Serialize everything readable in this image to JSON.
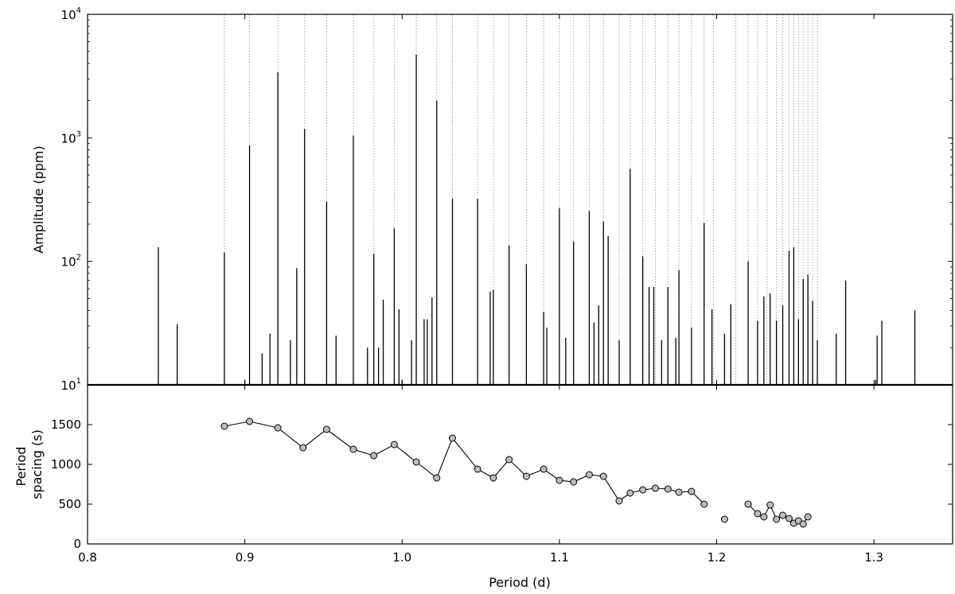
{
  "chart_data": [
    {
      "type": "bar",
      "subtype": "stem",
      "ylabel": "Amplitude (ppm)",
      "xlim": [
        0.8,
        1.35
      ],
      "ylim": [
        10,
        10000
      ],
      "yscale": "log",
      "y_ticks": [
        {
          "base": "10",
          "exp": "1"
        },
        {
          "base": "10",
          "exp": "2"
        },
        {
          "base": "10",
          "exp": "3"
        },
        {
          "base": "10",
          "exp": "4"
        }
      ],
      "grid": false,
      "mode_periods": [
        0.887,
        0.903,
        0.921,
        0.938,
        0.952,
        0.969,
        0.982,
        0.995,
        1.009,
        1.022,
        1.032,
        1.048,
        1.058,
        1.068,
        1.079,
        1.09,
        1.1,
        1.109,
        1.119,
        1.128,
        1.138,
        1.145,
        1.153,
        1.161,
        1.169,
        1.176,
        1.184,
        1.192,
        1.198,
        1.212,
        1.22,
        1.226,
        1.232,
        1.238,
        1.242,
        1.246,
        1.249,
        1.252,
        1.255,
        1.258,
        1.261,
        1.264
      ],
      "stems": [
        {
          "x": 0.845,
          "y": 130
        },
        {
          "x": 0.857,
          "y": 31
        },
        {
          "x": 0.887,
          "y": 118
        },
        {
          "x": 0.9,
          "y": 11
        },
        {
          "x": 0.903,
          "y": 870
        },
        {
          "x": 0.911,
          "y": 18
        },
        {
          "x": 0.916,
          "y": 26
        },
        {
          "x": 0.921,
          "y": 3400
        },
        {
          "x": 0.929,
          "y": 23
        },
        {
          "x": 0.933,
          "y": 88
        },
        {
          "x": 0.938,
          "y": 1180
        },
        {
          "x": 0.952,
          "y": 305
        },
        {
          "x": 0.958,
          "y": 25
        },
        {
          "x": 0.969,
          "y": 1040
        },
        {
          "x": 0.978,
          "y": 20
        },
        {
          "x": 0.982,
          "y": 115
        },
        {
          "x": 0.985,
          "y": 20
        },
        {
          "x": 0.988,
          "y": 49
        },
        {
          "x": 0.995,
          "y": 185
        },
        {
          "x": 0.998,
          "y": 41
        },
        {
          "x": 1.0,
          "y": 11
        },
        {
          "x": 1.006,
          "y": 23
        },
        {
          "x": 1.009,
          "y": 4700
        },
        {
          "x": 1.014,
          "y": 34
        },
        {
          "x": 1.016,
          "y": 34
        },
        {
          "x": 1.019,
          "y": 51
        },
        {
          "x": 1.022,
          "y": 2000
        },
        {
          "x": 1.032,
          "y": 320
        },
        {
          "x": 1.048,
          "y": 320
        },
        {
          "x": 1.056,
          "y": 57
        },
        {
          "x": 1.058,
          "y": 59
        },
        {
          "x": 1.068,
          "y": 135
        },
        {
          "x": 1.079,
          "y": 95
        },
        {
          "x": 1.09,
          "y": 39
        },
        {
          "x": 1.092,
          "y": 29
        },
        {
          "x": 1.1,
          "y": 270
        },
        {
          "x": 1.104,
          "y": 24
        },
        {
          "x": 1.109,
          "y": 145
        },
        {
          "x": 1.119,
          "y": 255
        },
        {
          "x": 1.122,
          "y": 32
        },
        {
          "x": 1.125,
          "y": 44
        },
        {
          "x": 1.128,
          "y": 210
        },
        {
          "x": 1.131,
          "y": 160
        },
        {
          "x": 1.138,
          "y": 23
        },
        {
          "x": 1.145,
          "y": 560
        },
        {
          "x": 1.153,
          "y": 110
        },
        {
          "x": 1.157,
          "y": 62
        },
        {
          "x": 1.16,
          "y": 62
        },
        {
          "x": 1.165,
          "y": 23
        },
        {
          "x": 1.169,
          "y": 62
        },
        {
          "x": 1.174,
          "y": 24
        },
        {
          "x": 1.176,
          "y": 85
        },
        {
          "x": 1.184,
          "y": 29
        },
        {
          "x": 1.192,
          "y": 205
        },
        {
          "x": 1.197,
          "y": 41
        },
        {
          "x": 1.205,
          "y": 26
        },
        {
          "x": 1.209,
          "y": 45
        },
        {
          "x": 1.22,
          "y": 100
        },
        {
          "x": 1.226,
          "y": 33
        },
        {
          "x": 1.23,
          "y": 52
        },
        {
          "x": 1.234,
          "y": 55
        },
        {
          "x": 1.238,
          "y": 33
        },
        {
          "x": 1.242,
          "y": 44
        },
        {
          "x": 1.246,
          "y": 122
        },
        {
          "x": 1.249,
          "y": 130
        },
        {
          "x": 1.252,
          "y": 34
        },
        {
          "x": 1.255,
          "y": 72
        },
        {
          "x": 1.258,
          "y": 78
        },
        {
          "x": 1.261,
          "y": 48
        },
        {
          "x": 1.264,
          "y": 23
        },
        {
          "x": 1.276,
          "y": 26
        },
        {
          "x": 1.282,
          "y": 70
        },
        {
          "x": 1.301,
          "y": 11
        },
        {
          "x": 1.302,
          "y": 25
        },
        {
          "x": 1.305,
          "y": 33
        },
        {
          "x": 1.326,
          "y": 40
        }
      ]
    },
    {
      "type": "line",
      "subtype": "line-with-markers",
      "xlabel": "Period (d)",
      "ylabel": "Period spacing (s)",
      "ylabel_lines": [
        "Period",
        "spacing (s)"
      ],
      "xlim": [
        0.8,
        1.35
      ],
      "ylim": [
        0,
        2000
      ],
      "x_ticks": [
        "0.8",
        "0.9",
        "1.0",
        "1.1",
        "1.2",
        "1.3"
      ],
      "y_ticks": [
        "0",
        "500",
        "1000",
        "1500"
      ],
      "grid": false,
      "series": [
        {
          "points": [
            [
              0.887,
              1480
            ],
            [
              0.903,
              1540
            ],
            [
              0.921,
              1460
            ],
            [
              0.937,
              1210
            ],
            [
              0.952,
              1440
            ],
            [
              0.969,
              1190
            ],
            [
              0.982,
              1110
            ],
            [
              0.995,
              1250
            ],
            [
              1.009,
              1030
            ],
            [
              1.022,
              830
            ],
            [
              1.032,
              1330
            ],
            [
              1.048,
              940
            ],
            [
              1.058,
              830
            ],
            [
              1.068,
              1060
            ],
            [
              1.079,
              850
            ],
            [
              1.09,
              940
            ],
            [
              1.1,
              800
            ],
            [
              1.109,
              780
            ],
            [
              1.119,
              870
            ],
            [
              1.128,
              850
            ],
            [
              1.138,
              540
            ],
            [
              1.145,
              640
            ],
            [
              1.153,
              680
            ],
            [
              1.161,
              700
            ],
            [
              1.169,
              690
            ],
            [
              1.176,
              650
            ],
            [
              1.184,
              660
            ],
            [
              1.192,
              500
            ]
          ]
        },
        {
          "points": [
            [
              1.205,
              310
            ]
          ]
        },
        {
          "points": [
            [
              1.22,
              500
            ],
            [
              1.226,
              380
            ],
            [
              1.23,
              340
            ],
            [
              1.234,
              490
            ],
            [
              1.238,
              310
            ],
            [
              1.242,
              360
            ],
            [
              1.246,
              320
            ],
            [
              1.249,
              260
            ],
            [
              1.252,
              290
            ],
            [
              1.255,
              250
            ],
            [
              1.258,
              340
            ]
          ]
        }
      ]
    }
  ]
}
